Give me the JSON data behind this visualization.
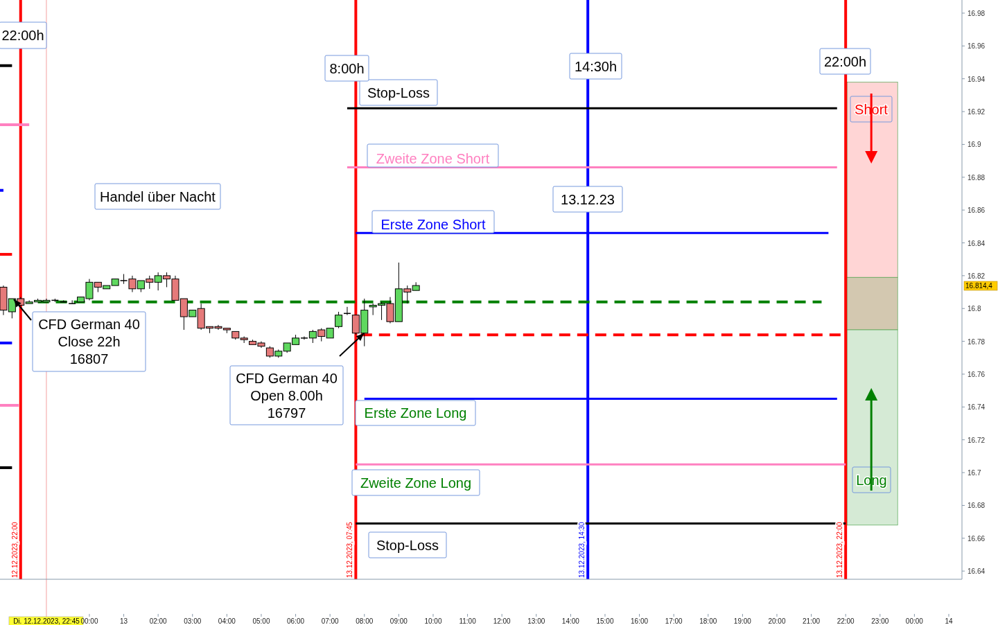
{
  "chart_data": {
    "type": "candlestick",
    "x": [
      "2023-12-12T21:30",
      "2023-12-12T21:45",
      "2023-12-12T22:00",
      "2023-12-12T22:15",
      "2023-12-12T22:30",
      "2023-12-12T22:45",
      "2023-12-12T23:00",
      "2023-12-12T23:15",
      "2023-12-12T23:30",
      "2023-12-12T23:45",
      "2023-12-13T00:00",
      "2023-12-13T00:15",
      "2023-12-13T00:30",
      "2023-12-13T00:45",
      "2023-12-13T01:00",
      "2023-12-13T01:15",
      "2023-12-13T01:30",
      "2023-12-13T01:45",
      "2023-12-13T02:00",
      "2023-12-13T02:15",
      "2023-12-13T02:30",
      "2023-12-13T02:45",
      "2023-12-13T03:00",
      "2023-12-13T03:15",
      "2023-12-13T03:30",
      "2023-12-13T03:45",
      "2023-12-13T04:00",
      "2023-12-13T04:15",
      "2023-12-13T04:30",
      "2023-12-13T04:45",
      "2023-12-13T05:00",
      "2023-12-13T05:15",
      "2023-12-13T05:30",
      "2023-12-13T05:45",
      "2023-12-13T06:00",
      "2023-12-13T06:15",
      "2023-12-13T06:30",
      "2023-12-13T06:45",
      "2023-12-13T07:00",
      "2023-12-13T07:15",
      "2023-12-13T07:30",
      "2023-12-13T07:45",
      "2023-12-13T08:00",
      "2023-12-13T08:15",
      "2023-12-13T08:30",
      "2023-12-13T08:45",
      "2023-12-13T09:00",
      "2023-12-13T09:15",
      "2023-12-13T09:30"
    ],
    "ohlc": [
      [
        16.813,
        16.814,
        16.796,
        16.799
      ],
      [
        16.798,
        16.806,
        16.794,
        16.806
      ],
      [
        16.806,
        16.807,
        16.802,
        16.802
      ],
      [
        16.803,
        16.805,
        16.803,
        16.804
      ],
      [
        16.804,
        16.806,
        16.804,
        16.805
      ],
      [
        16.804,
        16.806,
        16.804,
        16.805
      ],
      [
        16.805,
        16.806,
        16.804,
        16.805
      ],
      [
        16.804,
        16.805,
        16.804,
        16.804
      ],
      [
        16.803,
        16.805,
        16.803,
        16.803
      ],
      [
        16.804,
        16.807,
        16.804,
        16.807
      ],
      [
        16.806,
        16.818,
        16.805,
        16.816
      ],
      [
        16.816,
        16.816,
        16.81,
        16.813
      ],
      [
        16.812,
        16.814,
        16.812,
        16.814
      ],
      [
        16.814,
        16.818,
        16.814,
        16.818
      ],
      [
        16.817,
        16.821,
        16.815,
        16.817
      ],
      [
        16.818,
        16.82,
        16.81,
        16.812
      ],
      [
        16.812,
        16.817,
        16.81,
        16.817
      ],
      [
        16.818,
        16.82,
        16.812,
        16.816
      ],
      [
        16.816,
        16.822,
        16.811,
        16.82
      ],
      [
        16.82,
        16.822,
        16.813,
        16.818
      ],
      [
        16.818,
        16.82,
        16.805,
        16.805
      ],
      [
        16.806,
        16.806,
        16.787,
        16.795
      ],
      [
        16.795,
        16.799,
        16.795,
        16.799
      ],
      [
        16.8,
        16.803,
        16.787,
        16.788
      ],
      [
        16.789,
        16.789,
        16.785,
        16.788
      ],
      [
        16.789,
        16.79,
        16.787,
        16.788
      ],
      [
        16.788,
        16.788,
        16.785,
        16.787
      ],
      [
        16.786,
        16.786,
        16.781,
        16.782
      ],
      [
        16.782,
        16.783,
        16.779,
        16.781
      ],
      [
        16.78,
        16.781,
        16.778,
        16.778
      ],
      [
        16.779,
        16.78,
        16.776,
        16.777
      ],
      [
        16.776,
        16.777,
        16.77,
        16.771
      ],
      [
        16.771,
        16.775,
        16.77,
        16.774
      ],
      [
        16.774,
        16.779,
        16.773,
        16.779
      ],
      [
        16.778,
        16.784,
        16.778,
        16.782
      ],
      [
        16.782,
        16.783,
        16.781,
        16.782
      ],
      [
        16.782,
        16.787,
        16.779,
        16.786
      ],
      [
        16.787,
        16.788,
        16.78,
        16.783
      ],
      [
        16.782,
        16.788,
        16.782,
        16.788
      ],
      [
        16.789,
        16.798,
        16.788,
        16.796
      ],
      [
        16.797,
        16.801,
        16.796,
        16.797
      ],
      [
        16.796,
        16.796,
        16.784,
        16.785
      ],
      [
        16.785,
        16.806,
        16.777,
        16.799
      ],
      [
        16.801,
        16.803,
        16.796,
        16.802
      ],
      [
        16.802,
        16.804,
        16.793,
        16.803
      ],
      [
        16.803,
        16.807,
        16.791,
        16.792
      ],
      [
        16.792,
        16.828,
        16.792,
        16.812
      ],
      [
        16.812,
        16.814,
        16.803,
        16.81
      ],
      [
        16.811,
        16.816,
        16.811,
        16.814
      ]
    ],
    "series": [
      {
        "type": "line",
        "name": "Stop-Loss",
        "color": "#000000",
        "x": [
          "2023-12-13T07:30",
          "2023-12-13T21:45"
        ],
        "values": [
          16.922,
          16.922
        ]
      },
      {
        "type": "line",
        "name": "Zweite Zone Short",
        "color": "#ff80c0",
        "x": [
          "2023-12-13T07:30",
          "2023-12-13T21:45"
        ],
        "values": [
          16.886,
          16.886
        ]
      },
      {
        "type": "line",
        "name": "Erste Zone Short",
        "color": "#0000ff",
        "x": [
          "2023-12-13T07:45",
          "2023-12-13T21:30"
        ],
        "values": [
          16.846,
          16.846
        ]
      },
      {
        "type": "line",
        "name": "Erste Zone Long",
        "color": "#0000ff",
        "x": [
          "2023-12-13T08:00",
          "2023-12-13T21:45"
        ],
        "values": [
          16.745,
          16.745
        ]
      },
      {
        "type": "line",
        "name": "Zweite Zone Long",
        "color": "#ff80c0",
        "x": [
          "2023-12-13T07:45",
          "2023-12-13T22:00"
        ],
        "values": [
          16.705,
          16.705
        ]
      },
      {
        "type": "line",
        "name": "Stop-Loss",
        "color": "#000000",
        "x": [
          "2023-12-13T07:45",
          "2023-12-13T22:00"
        ],
        "values": [
          16.669,
          16.669
        ]
      },
      {
        "type": "line",
        "color": "#008000",
        "line_style": "dashed",
        "x": [
          "2023-12-12T22:30",
          "2023-12-13T21:18"
        ],
        "values": [
          16.804,
          16.804
        ]
      },
      {
        "type": "line",
        "color": "#ff0000",
        "line_style": "dashed",
        "x": [
          "2023-12-13T07:54",
          "2023-12-13T21:57"
        ],
        "values": [
          16.784,
          16.784
        ]
      },
      {
        "type": "line",
        "color": "#000000",
        "x": [
          "2023-12-12T21:24",
          "2023-12-12T21:45"
        ],
        "values": [
          16.948,
          16.948
        ]
      },
      {
        "type": "line",
        "color": "#ff80c0",
        "x": [
          "2023-12-12T21:24",
          "2023-12-12T22:15"
        ],
        "values": [
          16.912,
          16.912
        ]
      },
      {
        "type": "line",
        "color": "#0000ff",
        "x": [
          "2023-12-12T21:24",
          "2023-12-12T21:30"
        ],
        "values": [
          16.872,
          16.872
        ]
      },
      {
        "type": "line",
        "color": "#ff0000",
        "x": [
          "2023-12-12T21:24",
          "2023-12-12T21:45"
        ],
        "values": [
          16.833,
          16.833
        ]
      },
      {
        "type": "line",
        "color": "#0000ff",
        "x": [
          "2023-12-12T21:24",
          "2023-12-12T21:45"
        ],
        "values": [
          16.779,
          16.779
        ]
      },
      {
        "type": "line",
        "color": "#ff80c0",
        "x": [
          "2023-12-12T21:24",
          "2023-12-12T21:57"
        ],
        "values": [
          16.741,
          16.741
        ]
      },
      {
        "type": "line",
        "color": "#000000",
        "x": [
          "2023-12-12T21:24",
          "2023-12-12T21:45"
        ],
        "values": [
          16.703,
          16.703
        ]
      }
    ],
    "ref_lines": [
      {
        "axis": "x",
        "value": "2023-12-12T22:00",
        "label": "12.12.2023, 22:00",
        "color": "#ff0000"
      },
      {
        "axis": "x",
        "value": "2023-12-13T07:45",
        "label": "13.12.2023, 07:45",
        "color": "#ff0000"
      },
      {
        "axis": "x",
        "value": "2023-12-13T14:30",
        "label": "13.12.2023, 14:30",
        "color": "#0000ff"
      },
      {
        "axis": "x",
        "value": "2023-12-13T22:00",
        "label": "13.12.2023, 22:00",
        "color": "#ff0000"
      },
      {
        "axis": "x",
        "value": "2023-12-12T22:45",
        "label": "Di. 12.12.2023, 22:45",
        "color": "#f4a0a0"
      }
    ],
    "bands": [
      {
        "axis": "y",
        "from": 16.819,
        "to": 16.938,
        "color": "#ffd5d5"
      },
      {
        "axis": "y",
        "from": 16.787,
        "to": 16.819,
        "color": "#d3c8b0"
      },
      {
        "axis": "y",
        "from": 16.668,
        "to": 16.787,
        "color": "#d5ead5"
      }
    ],
    "annotations": [
      "22:00h",
      "8:00h",
      "14:30h",
      "22:00h",
      "13.12.23",
      "Handel über Nacht",
      "CFD German 40\nClose 22h\n16807",
      "CFD German 40\nOpen 8.00h\n16797",
      "Short",
      "Long",
      "16.814,4"
    ],
    "xlim": [
      "2023-12-12T21:24",
      "2023-12-14T01:23"
    ],
    "xticks": [
      {
        "value": "2023-12-13T00:00",
        "label": "00:00"
      },
      {
        "value": "2023-12-13T01:00",
        "label": "13"
      },
      {
        "value": "2023-12-13T02:00",
        "label": "02:00"
      },
      {
        "value": "2023-12-13T03:00",
        "label": "03:00"
      },
      {
        "value": "2023-12-13T04:00",
        "label": "04:00"
      },
      {
        "value": "2023-12-13T05:00",
        "label": "05:00"
      },
      {
        "value": "2023-12-13T06:00",
        "label": "06:00"
      },
      {
        "value": "2023-12-13T07:00",
        "label": "07:00"
      },
      {
        "value": "2023-12-13T08:00",
        "label": "08:00"
      },
      {
        "value": "2023-12-13T09:00",
        "label": "09:00"
      },
      {
        "value": "2023-12-13T10:00",
        "label": "10:00"
      },
      {
        "value": "2023-12-13T11:00",
        "label": "11:00"
      },
      {
        "value": "2023-12-13T12:00",
        "label": "12:00"
      },
      {
        "value": "2023-12-13T13:00",
        "label": "13:00"
      },
      {
        "value": "2023-12-13T14:00",
        "label": "14:00"
      },
      {
        "value": "2023-12-13T15:00",
        "label": "15:00"
      },
      {
        "value": "2023-12-13T16:00",
        "label": "16:00"
      },
      {
        "value": "2023-12-13T17:00",
        "label": "17:00"
      },
      {
        "value": "2023-12-13T18:00",
        "label": "18:00"
      },
      {
        "value": "2023-12-13T19:00",
        "label": "19:00"
      },
      {
        "value": "2023-12-13T20:00",
        "label": "20:00"
      },
      {
        "value": "2023-12-13T21:00",
        "label": "21:00"
      },
      {
        "value": "2023-12-13T22:00",
        "label": "22:00"
      },
      {
        "value": "2023-12-13T23:00",
        "label": "23:00"
      },
      {
        "value": "2023-12-14T00:00",
        "label": "00:00"
      },
      {
        "value": "2023-12-14T01:00",
        "label": "14"
      }
    ],
    "ylim": [
      16.635,
      16.988
    ],
    "yticks": [
      16.64,
      16.66,
      16.68,
      16.7,
      16.72,
      16.74,
      16.76,
      16.78,
      16.8,
      16.82,
      16.84,
      16.86,
      16.88,
      16.9,
      16.92,
      16.94,
      16.96,
      16.98
    ],
    "grid": false
  }
}
